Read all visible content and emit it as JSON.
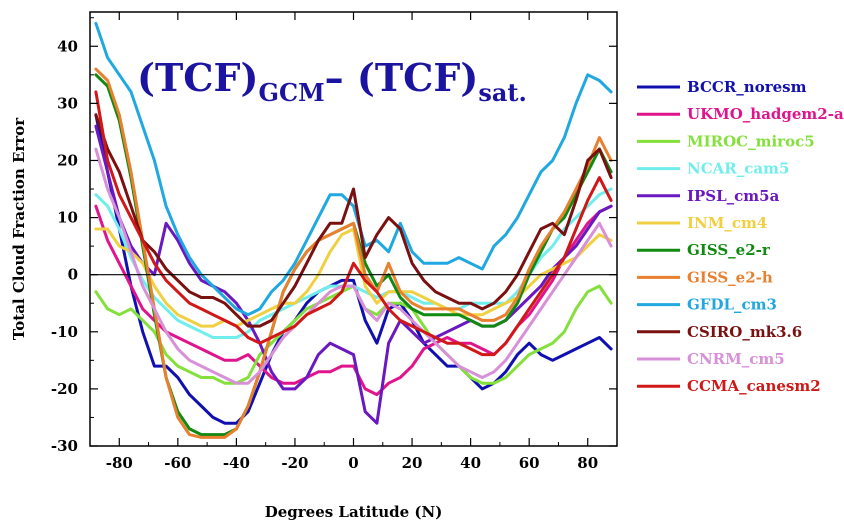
{
  "chart_data": {
    "type": "line",
    "title": {
      "part1": "(TCF)",
      "sub1": "GCM",
      "dash": "– ",
      "part2": "(TCF)",
      "sub2": "sat."
    },
    "xlabel": "Degrees Latitude (N)",
    "ylabel": "Total Cloud Fraction Error",
    "xlim": [
      -90,
      90
    ],
    "ylim": [
      -30,
      46
    ],
    "xticks": [
      -80,
      -60,
      -40,
      -20,
      0,
      20,
      40,
      60,
      80
    ],
    "yticks": [
      -30,
      -20,
      -10,
      0,
      10,
      20,
      30,
      40
    ],
    "zero_line": true,
    "legend_position": "right",
    "series": [
      {
        "name": "BCCR_noresm",
        "color": "#1010b0",
        "x": [
          -88,
          -84,
          -80,
          -76,
          -72,
          -68,
          -64,
          -60,
          -56,
          -52,
          -48,
          -44,
          -40,
          -36,
          -32,
          -28,
          -24,
          -20,
          -16,
          -12,
          -8,
          -4,
          0,
          4,
          8,
          12,
          16,
          20,
          24,
          28,
          32,
          36,
          40,
          44,
          48,
          52,
          56,
          60,
          64,
          68,
          72,
          76,
          80,
          84,
          88
        ],
        "y": [
          28,
          18,
          8,
          -2,
          -10,
          -16,
          -16,
          -18,
          -21,
          -23,
          -25,
          -26,
          -26,
          -24,
          -19,
          -14,
          -10,
          -8,
          -5,
          -3,
          -2,
          -1,
          -1,
          -8,
          -12,
          -6,
          -5,
          -8,
          -12,
          -14,
          -16,
          -16,
          -18,
          -20,
          -19,
          -17,
          -14,
          -12,
          -14,
          -15,
          -14,
          -13,
          -12,
          -11,
          -13
        ]
      },
      {
        "name": "UKMO_hadgem2-a",
        "color": "#e0158e",
        "x": [
          -88,
          -84,
          -80,
          -76,
          -72,
          -68,
          -64,
          -60,
          -56,
          -52,
          -48,
          -44,
          -40,
          -36,
          -32,
          -28,
          -24,
          -20,
          -16,
          -12,
          -8,
          -4,
          0,
          4,
          8,
          12,
          16,
          20,
          24,
          28,
          32,
          36,
          40,
          44,
          48,
          52,
          56,
          60,
          64,
          68,
          72,
          76,
          80,
          84,
          88
        ],
        "y": [
          12,
          6,
          2,
          -2,
          -6,
          -8,
          -10,
          -11,
          -12,
          -13,
          -14,
          -15,
          -15,
          -14,
          -16,
          -18,
          -19,
          -19,
          -18,
          -17,
          -17,
          -16,
          -16,
          -20,
          -21,
          -19,
          -18,
          -16,
          -13,
          -12,
          -11,
          -12,
          -12,
          -13,
          -14,
          -12,
          -9,
          -7,
          -4,
          -1,
          3,
          6,
          9,
          11,
          12
        ]
      },
      {
        "name": "MIROC_miroc5",
        "color": "#84e03a",
        "x": [
          -88,
          -84,
          -80,
          -76,
          -72,
          -68,
          -64,
          -60,
          -56,
          -52,
          -48,
          -44,
          -40,
          -36,
          -32,
          -28,
          -24,
          -20,
          -16,
          -12,
          -8,
          -4,
          0,
          4,
          8,
          12,
          16,
          20,
          24,
          28,
          32,
          36,
          40,
          44,
          48,
          52,
          56,
          60,
          64,
          68,
          72,
          76,
          80,
          84,
          88
        ],
        "y": [
          -3,
          -6,
          -7,
          -6,
          -8,
          -10,
          -14,
          -16,
          -17,
          -18,
          -18,
          -19,
          -19,
          -18,
          -14,
          -12,
          -10,
          -8,
          -6,
          -5,
          -4,
          -3,
          -2,
          -6,
          -7,
          -5,
          -5,
          -6,
          -9,
          -12,
          -14,
          -16,
          -18,
          -19,
          -19,
          -18,
          -16,
          -14,
          -13,
          -12,
          -10,
          -6,
          -3,
          -2,
          -5
        ]
      },
      {
        "name": "NCAR_cam5",
        "color": "#70eeee",
        "x": [
          -88,
          -84,
          -80,
          -76,
          -72,
          -68,
          -64,
          -60,
          -56,
          -52,
          -48,
          -44,
          -40,
          -36,
          -32,
          -28,
          -24,
          -20,
          -16,
          -12,
          -8,
          -4,
          0,
          4,
          8,
          12,
          16,
          20,
          24,
          28,
          32,
          36,
          40,
          44,
          48,
          52,
          56,
          60,
          64,
          68,
          72,
          76,
          80,
          84,
          88
        ],
        "y": [
          14,
          12,
          8,
          3,
          -1,
          -4,
          -6,
          -8,
          -9,
          -10,
          -11,
          -11,
          -11,
          -10,
          -8,
          -7,
          -6,
          -5,
          -4,
          -3,
          -2,
          -2,
          -2,
          -3,
          -4,
          -3,
          -3,
          -4,
          -5,
          -5,
          -6,
          -6,
          -5,
          -5,
          -5,
          -5,
          -3,
          0,
          3,
          5,
          8,
          10,
          12,
          14,
          15
        ]
      },
      {
        "name": "IPSL_cm5a",
        "color": "#6a18c0",
        "x": [
          -88,
          -84,
          -80,
          -76,
          -72,
          -68,
          -64,
          -60,
          -56,
          -52,
          -48,
          -44,
          -40,
          -36,
          -32,
          -28,
          -24,
          -20,
          -16,
          -12,
          -8,
          -4,
          0,
          4,
          8,
          12,
          16,
          20,
          24,
          28,
          32,
          36,
          40,
          44,
          48,
          52,
          56,
          60,
          64,
          68,
          72,
          76,
          80,
          84,
          88
        ],
        "y": [
          26,
          18,
          10,
          5,
          2,
          0,
          9,
          6,
          2,
          -1,
          -2,
          -3,
          -5,
          -8,
          -12,
          -17,
          -20,
          -20,
          -18,
          -14,
          -12,
          -13,
          -14,
          -24,
          -26,
          -12,
          -8,
          -10,
          -12,
          -11,
          -10,
          -9,
          -8,
          -9,
          -9,
          -8,
          -6,
          -4,
          -2,
          1,
          3,
          5,
          8,
          11,
          12
        ]
      },
      {
        "name": "INM_cm4",
        "color": "#f0d040",
        "x": [
          -88,
          -84,
          -80,
          -76,
          -72,
          -68,
          -64,
          -60,
          -56,
          -52,
          -48,
          -44,
          -40,
          -36,
          -32,
          -28,
          -24,
          -20,
          -16,
          -12,
          -8,
          -4,
          0,
          4,
          8,
          12,
          16,
          20,
          24,
          28,
          32,
          36,
          40,
          44,
          48,
          52,
          56,
          60,
          64,
          68,
          72,
          76,
          80,
          84,
          88
        ],
        "y": [
          8,
          8,
          5,
          4,
          2,
          -2,
          -5,
          -7,
          -8,
          -9,
          -9,
          -8,
          -9,
          -8,
          -7,
          -6,
          -5,
          -5,
          -3,
          0,
          4,
          7,
          8,
          -2,
          -5,
          -3,
          -3,
          -3,
          -4,
          -5,
          -6,
          -7,
          -7,
          -7,
          -6,
          -5,
          -4,
          -2,
          0,
          1,
          2,
          3,
          5,
          7,
          6
        ]
      },
      {
        "name": "GISS_e2-r",
        "color": "#108a10",
        "x": [
          -88,
          -84,
          -80,
          -76,
          -72,
          -68,
          -64,
          -60,
          -56,
          -52,
          -48,
          -44,
          -40,
          -36,
          -32,
          -28,
          -24,
          -20,
          -16,
          -12,
          -8,
          -4,
          0,
          4,
          8,
          12,
          16,
          20,
          24,
          28,
          32,
          36,
          40,
          44,
          48,
          52,
          56,
          60,
          64,
          68,
          72,
          76,
          80,
          84,
          88
        ],
        "y": [
          35,
          33,
          27,
          17,
          5,
          -7,
          -18,
          -24,
          -27,
          -28,
          -28,
          -28,
          -27,
          -23,
          -17,
          -10,
          -3,
          1,
          4,
          6,
          7,
          8,
          9,
          2,
          -2,
          0,
          -4,
          -6,
          -7,
          -7,
          -7,
          -7,
          -8,
          -9,
          -9,
          -8,
          -5,
          0,
          4,
          8,
          10,
          14,
          18,
          22,
          18
        ]
      },
      {
        "name": "GISS_e2-h",
        "color": "#e88030",
        "x": [
          -88,
          -84,
          -80,
          -76,
          -72,
          -68,
          -64,
          -60,
          -56,
          -52,
          -48,
          -44,
          -40,
          -36,
          -32,
          -28,
          -24,
          -20,
          -16,
          -12,
          -8,
          -4,
          0,
          4,
          8,
          12,
          16,
          20,
          24,
          28,
          32,
          36,
          40,
          44,
          48,
          52,
          56,
          60,
          64,
          68,
          72,
          76,
          80,
          84,
          88
        ],
        "y": [
          36,
          34,
          28,
          18,
          6,
          -6,
          -18,
          -25,
          -28,
          -28.5,
          -28.5,
          -28.5,
          -27,
          -23,
          -17,
          -10,
          -3,
          1,
          4,
          6,
          7,
          8,
          9,
          0,
          -3,
          2,
          -3,
          -5,
          -6,
          -6,
          -6,
          -6,
          -7,
          -8,
          -8,
          -7,
          -4,
          1,
          5,
          8,
          11,
          15,
          19,
          24,
          20
        ]
      },
      {
        "name": "GFDL_cm3",
        "color": "#20a8e0",
        "x": [
          -88,
          -84,
          -80,
          -76,
          -72,
          -68,
          -64,
          -60,
          -56,
          -52,
          -48,
          -44,
          -40,
          -36,
          -32,
          -28,
          -24,
          -20,
          -16,
          -12,
          -8,
          -4,
          0,
          4,
          8,
          12,
          16,
          20,
          24,
          28,
          32,
          36,
          40,
          44,
          48,
          52,
          56,
          60,
          64,
          68,
          72,
          76,
          80,
          84,
          88
        ],
        "y": [
          44,
          38,
          35,
          32,
          26,
          20,
          12,
          7,
          3,
          0,
          -2,
          -4,
          -6,
          -7,
          -6,
          -3,
          -1,
          2,
          6,
          10,
          14,
          14,
          12,
          5,
          6,
          4,
          9,
          4,
          2,
          2,
          2,
          3,
          2,
          1,
          5,
          7,
          10,
          14,
          18,
          20,
          24,
          30,
          35,
          34,
          32
        ]
      },
      {
        "name": "CSIRO_mk3.6",
        "color": "#7a1010",
        "x": [
          -88,
          -84,
          -80,
          -76,
          -72,
          -68,
          -64,
          -60,
          -56,
          -52,
          -48,
          -44,
          -40,
          -36,
          -32,
          -28,
          -24,
          -20,
          -16,
          -12,
          -8,
          -4,
          0,
          4,
          8,
          12,
          16,
          20,
          24,
          28,
          32,
          36,
          40,
          44,
          48,
          52,
          56,
          60,
          64,
          68,
          72,
          76,
          80,
          84,
          88
        ],
        "y": [
          28,
          22,
          18,
          12,
          6,
          4,
          1,
          -1,
          -3,
          -4,
          -4,
          -5,
          -7,
          -9,
          -9,
          -8,
          -5,
          -2,
          2,
          6,
          9,
          9,
          15,
          3,
          7,
          10,
          8,
          2,
          -1,
          -3,
          -4,
          -5,
          -5,
          -6,
          -5,
          -3,
          0,
          4,
          8,
          9,
          7,
          13,
          20,
          22,
          17
        ]
      },
      {
        "name": "CNRM_cm5",
        "color": "#d890d8",
        "x": [
          -88,
          -84,
          -80,
          -76,
          -72,
          -68,
          -64,
          -60,
          -56,
          -52,
          -48,
          -44,
          -40,
          -36,
          -32,
          -28,
          -24,
          -20,
          -16,
          -12,
          -8,
          -4,
          0,
          4,
          8,
          12,
          16,
          20,
          24,
          28,
          32,
          36,
          40,
          44,
          48,
          52,
          56,
          60,
          64,
          68,
          72,
          76,
          80,
          84,
          88
        ],
        "y": [
          22,
          15,
          10,
          4,
          -2,
          -6,
          -10,
          -13,
          -15,
          -16,
          -17,
          -18,
          -19,
          -19,
          -17,
          -14,
          -11,
          -9,
          -7,
          -5,
          -3,
          -2,
          -2,
          -6,
          -8,
          -5,
          -6,
          -8,
          -10,
          -12,
          -14,
          -16,
          -17,
          -18,
          -17,
          -15,
          -12,
          -9,
          -6,
          -3,
          0,
          3,
          6,
          9,
          5
        ]
      },
      {
        "name": "CCMA_canesm2",
        "color": "#d01818",
        "x": [
          -88,
          -84,
          -80,
          -76,
          -72,
          -68,
          -64,
          -60,
          -56,
          -52,
          -48,
          -44,
          -40,
          -36,
          -32,
          -28,
          -24,
          -20,
          -16,
          -12,
          -8,
          -4,
          0,
          4,
          8,
          12,
          16,
          20,
          24,
          28,
          32,
          36,
          40,
          44,
          48,
          52,
          56,
          60,
          64,
          68,
          72,
          76,
          80,
          84,
          88
        ],
        "y": [
          32,
          20,
          14,
          10,
          6,
          2,
          -1,
          -3,
          -5,
          -6,
          -7,
          -8,
          -9,
          -11,
          -12,
          -11,
          -10,
          -9,
          -7,
          -6,
          -5,
          -3,
          2,
          -1,
          -3,
          -6,
          -8,
          -9,
          -10,
          -11,
          -12,
          -12,
          -13,
          -14,
          -14,
          -12,
          -9,
          -6,
          -3,
          0,
          3,
          8,
          13,
          17,
          13
        ]
      }
    ]
  }
}
